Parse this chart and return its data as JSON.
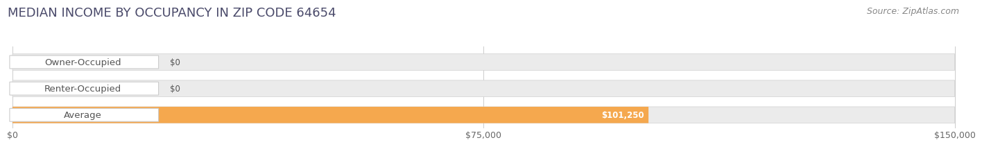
{
  "title": "MEDIAN INCOME BY OCCUPANCY IN ZIP CODE 64654",
  "source": "Source: ZipAtlas.com",
  "categories": [
    "Owner-Occupied",
    "Renter-Occupied",
    "Average"
  ],
  "values": [
    0,
    0,
    101250
  ],
  "bar_colors": [
    "#72ceca",
    "#c3a8d1",
    "#f5a84e"
  ],
  "value_labels": [
    "$0",
    "$0",
    "$101,250"
  ],
  "xlim": [
    0,
    150000
  ],
  "xticks": [
    0,
    75000,
    150000
  ],
  "xtick_labels": [
    "$0",
    "$75,000",
    "$150,000"
  ],
  "background_color": "#ffffff",
  "bar_bg_color": "#ebebeb",
  "title_fontsize": 13,
  "source_fontsize": 9,
  "label_fontsize": 9.5,
  "value_fontsize": 8.5,
  "tick_fontsize": 9
}
